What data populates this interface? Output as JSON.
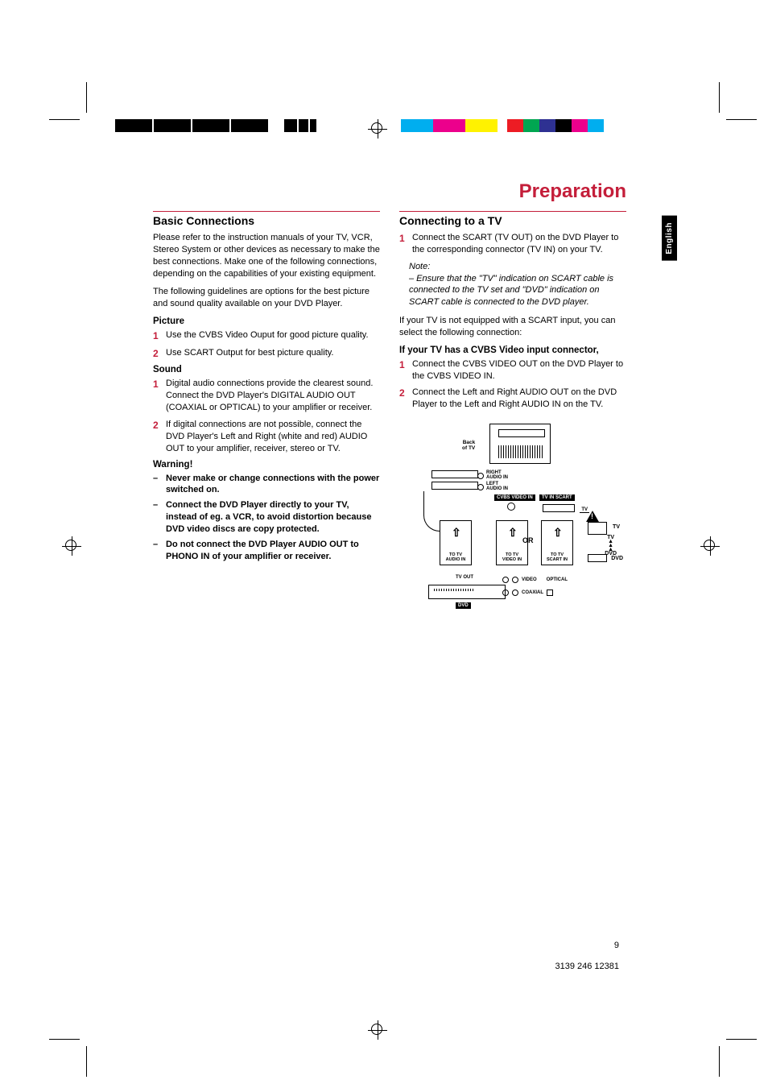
{
  "colorbar_left": [
    "#000000",
    "#000000",
    "#000000",
    "#000000",
    "#ffffff",
    "#000000",
    "#000000",
    "#000000",
    "#ffffff",
    "#000000"
  ],
  "colorbar_right": [
    "#00aeef",
    "#ec008c",
    "#fff200",
    "#ffffff",
    "#ed1c24",
    "#00a651",
    "#2e3192",
    "#000000",
    "#ec008c",
    "#00aeef"
  ],
  "title": "Preparation",
  "sidetab": "English",
  "page_num": "9",
  "footer_code": "3139 246 12381",
  "left": {
    "section": "Basic Connections",
    "intro1": "Please refer to the instruction manuals of your TV, VCR, Stereo System or other devices as necessary to make the best connections. Make one of the following connections, depending on the capabilities of your existing equipment.",
    "intro2": "The following guidelines are options for the best picture and sound quality available on your DVD Player.",
    "picture_head": "Picture",
    "pic1": "Use the CVBS Video Ouput for good picture quality.",
    "pic2": "Use SCART Output for best picture quality.",
    "sound_head": "Sound",
    "snd1": "Digital audio connections provide the clearest sound. Connect the DVD Player's DIGITAL AUDIO OUT (COAXIAL or OPTICAL) to your amplifier or receiver.",
    "snd2": "If digital connections are not possible, connect the DVD Player's Left and Right (white and red) AUDIO OUT to your amplifier, receiver, stereo or TV.",
    "warn_head": "Warning!",
    "warn1": "Never make or change connections with the power switched on.",
    "warn2": "Connect the DVD Player directly to your TV, instead of eg. a VCR,  to avoid distortion because DVD video discs are copy protected.",
    "warn3": "Do not connect the DVD Player AUDIO OUT to PHONO IN of your amplifier or receiver."
  },
  "right": {
    "section": "Connecting to a TV",
    "step1": "Connect the SCART (TV OUT) on the DVD Player to the corresponding connector (TV IN) on your TV.",
    "note_head": "Note:",
    "note": "–   Ensure that the \"TV\" indication on SCART cable is connected to the TV set and \"DVD\" indication on SCART cable is connected to the DVD player.",
    "after_note": "If your TV is not equipped with a SCART input, you can select the following connection:",
    "cvbs_head": "If your TV has a CVBS Video input connector,",
    "cvbs1": "Connect the CVBS VIDEO OUT on the DVD Player to the CVBS VIDEO IN.",
    "cvbs2": "Connect the Left and Right AUDIO OUT on the DVD Player to the Left and Right AUDIO IN on the TV.",
    "diagram": {
      "back_of_tv": "Back\nof TV",
      "right_audio": "RIGHT\nAUDIO IN",
      "left_audio": "LEFT\nAUDIO IN",
      "cvbs_in": "CVBS VIDEO IN",
      "scart_in": "TV IN SCART",
      "scart_tv": "TV",
      "to_audio": "TO TV\nAUDIO IN",
      "to_video": "TO TV\nVIDEO IN",
      "to_scart": "TO TV\nSCART IN",
      "or": "OR",
      "tv": "TV",
      "tv_stack": "TV\n▲\n▲\n▲\nDVD",
      "dvd": "DVD",
      "dvd2": "DVD",
      "tvout": "TV OUT",
      "video": "VIDEO",
      "optical": "OPTICAL",
      "coaxial": "COAXIAL"
    }
  }
}
